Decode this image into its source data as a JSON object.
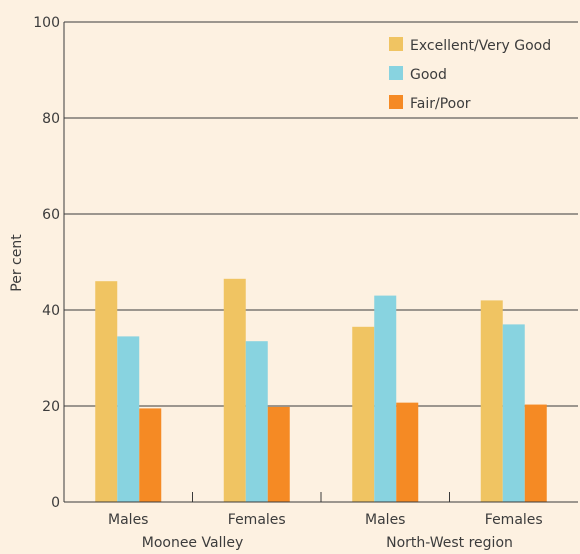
{
  "chart_data": {
    "type": "bar",
    "ylabel": "Per cent",
    "ylim": [
      0,
      100
    ],
    "yticks": [
      0,
      20,
      40,
      60,
      80,
      100
    ],
    "grid": true,
    "legend_position": "top-right",
    "categories": [
      "Males",
      "Females",
      "Males",
      "Females"
    ],
    "groups": [
      {
        "label": "Moonee Valley",
        "categories": [
          0,
          1
        ]
      },
      {
        "label": "North-West region",
        "categories": [
          2,
          3
        ]
      }
    ],
    "series": [
      {
        "name": "Excellent/Very Good",
        "color": "#f0c462",
        "values": [
          46,
          46.5,
          36.5,
          42
        ]
      },
      {
        "name": "Good",
        "color": "#88d3e0",
        "values": [
          34.5,
          33.5,
          43,
          37
        ]
      },
      {
        "name": "Fair/Poor",
        "color": "#f58a24",
        "values": [
          19.5,
          19.8,
          20.7,
          20.3
        ]
      }
    ]
  }
}
